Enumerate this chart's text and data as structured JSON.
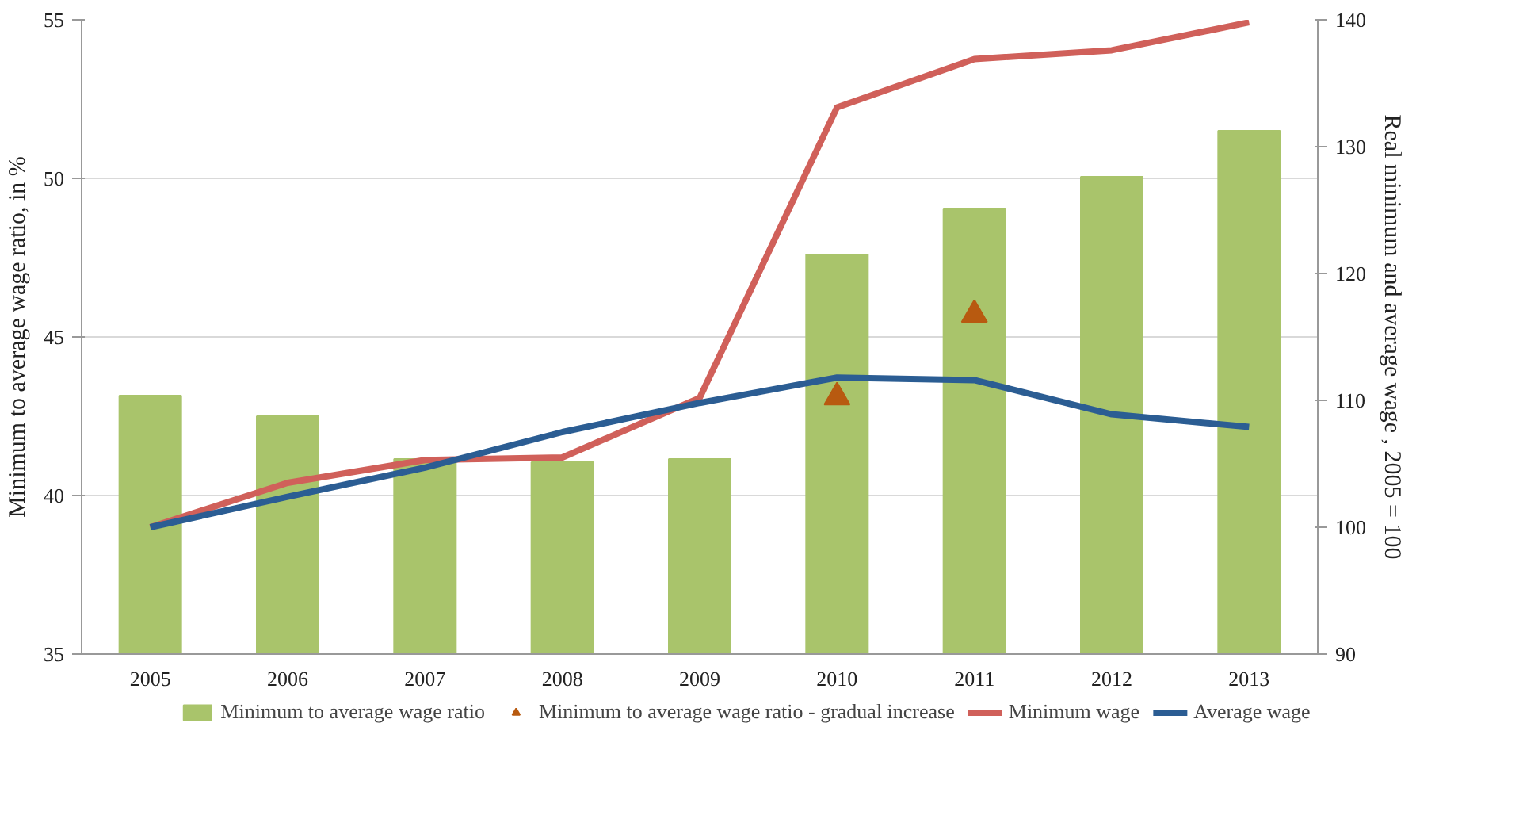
{
  "chart_data": {
    "type": "bar",
    "ylabel": "Minimum to average wage ratio, in %",
    "y2label": "Real minimum and average wage , 2005 = 100",
    "categories": [
      "2005",
      "2006",
      "2007",
      "2008",
      "2009",
      "2010",
      "2011",
      "2012",
      "2013"
    ],
    "series": [
      {
        "name": "Minimum to average wage ratio",
        "color": "#a9c46b",
        "values": [
          43.15,
          42.5,
          41.15,
          41.05,
          41.15,
          47.6,
          49.05,
          50.05,
          51.5
        ]
      },
      {
        "name": "Minimum to average wage ratio - gradual increase",
        "type": "scatter",
        "marker": "triangle",
        "color": "#b85a10",
        "values": [
          null,
          null,
          null,
          null,
          null,
          43.1,
          45.7,
          null,
          null
        ]
      },
      {
        "name": "Minimum wage",
        "type": "line",
        "axis": "y2",
        "color": "#d0605a",
        "values": [
          100,
          103.5,
          105.3,
          105.5,
          110.2,
          133.1,
          136.9,
          137.6,
          139.8
        ]
      },
      {
        "name": "Average wage",
        "type": "line",
        "axis": "y2",
        "color": "#2b5d93",
        "values": [
          100,
          102.4,
          104.7,
          107.5,
          109.8,
          111.8,
          111.6,
          108.9,
          107.9
        ]
      }
    ],
    "ylim": [
      35,
      55
    ],
    "yticks": [
      35,
      40,
      45,
      50,
      55
    ],
    "y2lim": [
      90,
      140
    ],
    "y2ticks": [
      90,
      100,
      110,
      120,
      130,
      140
    ],
    "grid": "y",
    "legend": "bottom",
    "line_style": "solid"
  }
}
